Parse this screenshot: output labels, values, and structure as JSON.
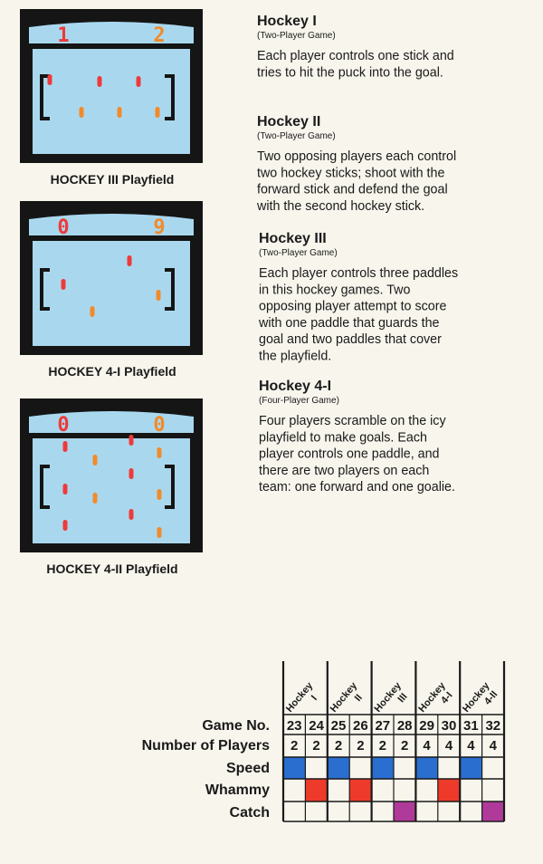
{
  "screens": [
    {
      "scores": [
        "1",
        "2"
      ],
      "caption": "HOCKEY III Playfield"
    },
    {
      "scores": [
        "0",
        "9"
      ],
      "caption": "HOCKEY 4-I Playfield"
    },
    {
      "scores": [
        "0",
        "0"
      ],
      "caption": "HOCKEY 4-II Playfield"
    }
  ],
  "games": [
    {
      "title": "Hockey I",
      "subtitle": "(Two-Player Game)",
      "lines": [
        "Each player controls one stick and",
        "tries to hit the puck into the goal."
      ]
    },
    {
      "title": "Hockey II",
      "subtitle": "(Two-Player Game)",
      "lines": [
        "Two opposing players each control",
        "two hockey sticks; shoot with the",
        "forward stick and defend the goal",
        "with the second hockey stick."
      ]
    },
    {
      "title": "Hockey III",
      "subtitle": "(Two-Player Game)",
      "lines": [
        "Each player controls three paddles",
        "in this hockey games. Two",
        "opposing player attempt to score",
        "with one paddle that guards the",
        "goal and two paddles that cover",
        "the playfield."
      ]
    },
    {
      "title": "Hockey 4-I",
      "subtitle": "(Four-Player Game)",
      "lines": [
        "Four players scramble on the icy",
        "playfield to make goals. Each",
        "player controls one paddle, and",
        "there are two players on each",
        "team: one forward and one goalie."
      ]
    }
  ],
  "table": {
    "columns": [
      [
        "Hockey",
        "I"
      ],
      [
        "Hockey",
        "II"
      ],
      [
        "Hockey",
        "III"
      ],
      [
        "Hockey",
        "4-I"
      ],
      [
        "Hockey",
        "4-II"
      ]
    ],
    "game_no": {
      "label": "Game No.",
      "values": [
        23,
        24,
        25,
        26,
        27,
        28,
        29,
        30,
        31,
        32
      ]
    },
    "players": {
      "label": "Number of Players",
      "values": [
        2,
        2,
        2,
        2,
        2,
        2,
        4,
        4,
        4,
        4
      ]
    },
    "features": [
      {
        "label": "Speed",
        "color": "#2a6fd0",
        "cells": [
          true,
          false,
          true,
          false,
          true,
          false,
          true,
          false,
          true,
          false
        ]
      },
      {
        "label": "Whammy",
        "color": "#ee3a2a",
        "cells": [
          false,
          true,
          false,
          true,
          false,
          false,
          false,
          true,
          false,
          false
        ]
      },
      {
        "label": "Catch",
        "color": "#b03a9a",
        "cells": [
          false,
          false,
          false,
          false,
          false,
          true,
          false,
          false,
          false,
          true
        ]
      }
    ]
  }
}
